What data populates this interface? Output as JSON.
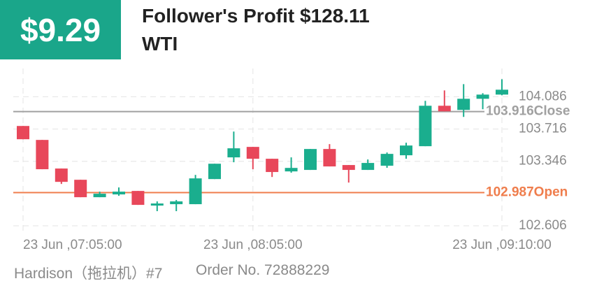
{
  "header": {
    "amount": "$9.29",
    "title": "Follower's Profit $128.11",
    "symbol": "WTI"
  },
  "footer": {
    "trader": "Hardison（拖拉机）#7",
    "order": "Order No. 72888229"
  },
  "chart_data": {
    "type": "candlestick",
    "categories": [
      "23 Jun ,07:05:00",
      null,
      null,
      null,
      null,
      null,
      null,
      null,
      null,
      null,
      null,
      null,
      "23 Jun ,08:05:00",
      null,
      null,
      null,
      null,
      null,
      null,
      null,
      null,
      null,
      null,
      null,
      null,
      "23 Jun ,09:10:00"
    ],
    "series": [
      {
        "up_color": "#1aae8e",
        "down_color": "#e8475a",
        "open": [
          103.751,
          103.591,
          103.263,
          103.134,
          102.934,
          102.966,
          103.006,
          102.838,
          102.854,
          102.854,
          103.142,
          103.391,
          103.511,
          103.375,
          103.23,
          103.247,
          103.487,
          103.303,
          103.247,
          103.295,
          103.415,
          103.519,
          103.983,
          103.935,
          104.063,
          104.111
        ],
        "high": [
          103.751,
          103.591,
          103.263,
          103.134,
          102.998,
          103.046,
          103.006,
          102.886,
          102.902,
          103.19,
          103.318,
          103.687,
          103.511,
          103.375,
          103.391,
          103.487,
          103.543,
          103.303,
          103.367,
          103.447,
          103.559,
          104.039,
          104.159,
          104.231,
          104.127,
          104.287
        ],
        "low": [
          103.599,
          103.255,
          103.086,
          102.934,
          102.934,
          102.95,
          102.846,
          102.774,
          102.774,
          102.854,
          103.142,
          103.335,
          103.255,
          103.166,
          103.215,
          103.247,
          103.287,
          103.102,
          103.247,
          103.271,
          103.375,
          103.519,
          103.919,
          103.855,
          103.943,
          104.103
        ],
        "close": [
          103.599,
          103.255,
          103.11,
          102.934,
          102.974,
          102.998,
          102.846,
          102.862,
          102.886,
          103.15,
          103.318,
          103.495,
          103.375,
          103.223,
          103.27,
          103.487,
          103.287,
          103.247,
          103.327,
          103.431,
          103.527,
          103.983,
          103.919,
          104.063,
          104.111,
          104.167
        ]
      }
    ],
    "ylim": [
      102.55,
      104.33
    ],
    "yticks": [
      102.606,
      103.346,
      103.716,
      104.086
    ],
    "grid": true,
    "lines": [
      {
        "value": 103.916,
        "label": "103.916Close",
        "color": "#a0a0a0"
      },
      {
        "value": 102.987,
        "label": "102.987Open",
        "color": "#ef7d4c"
      }
    ]
  }
}
